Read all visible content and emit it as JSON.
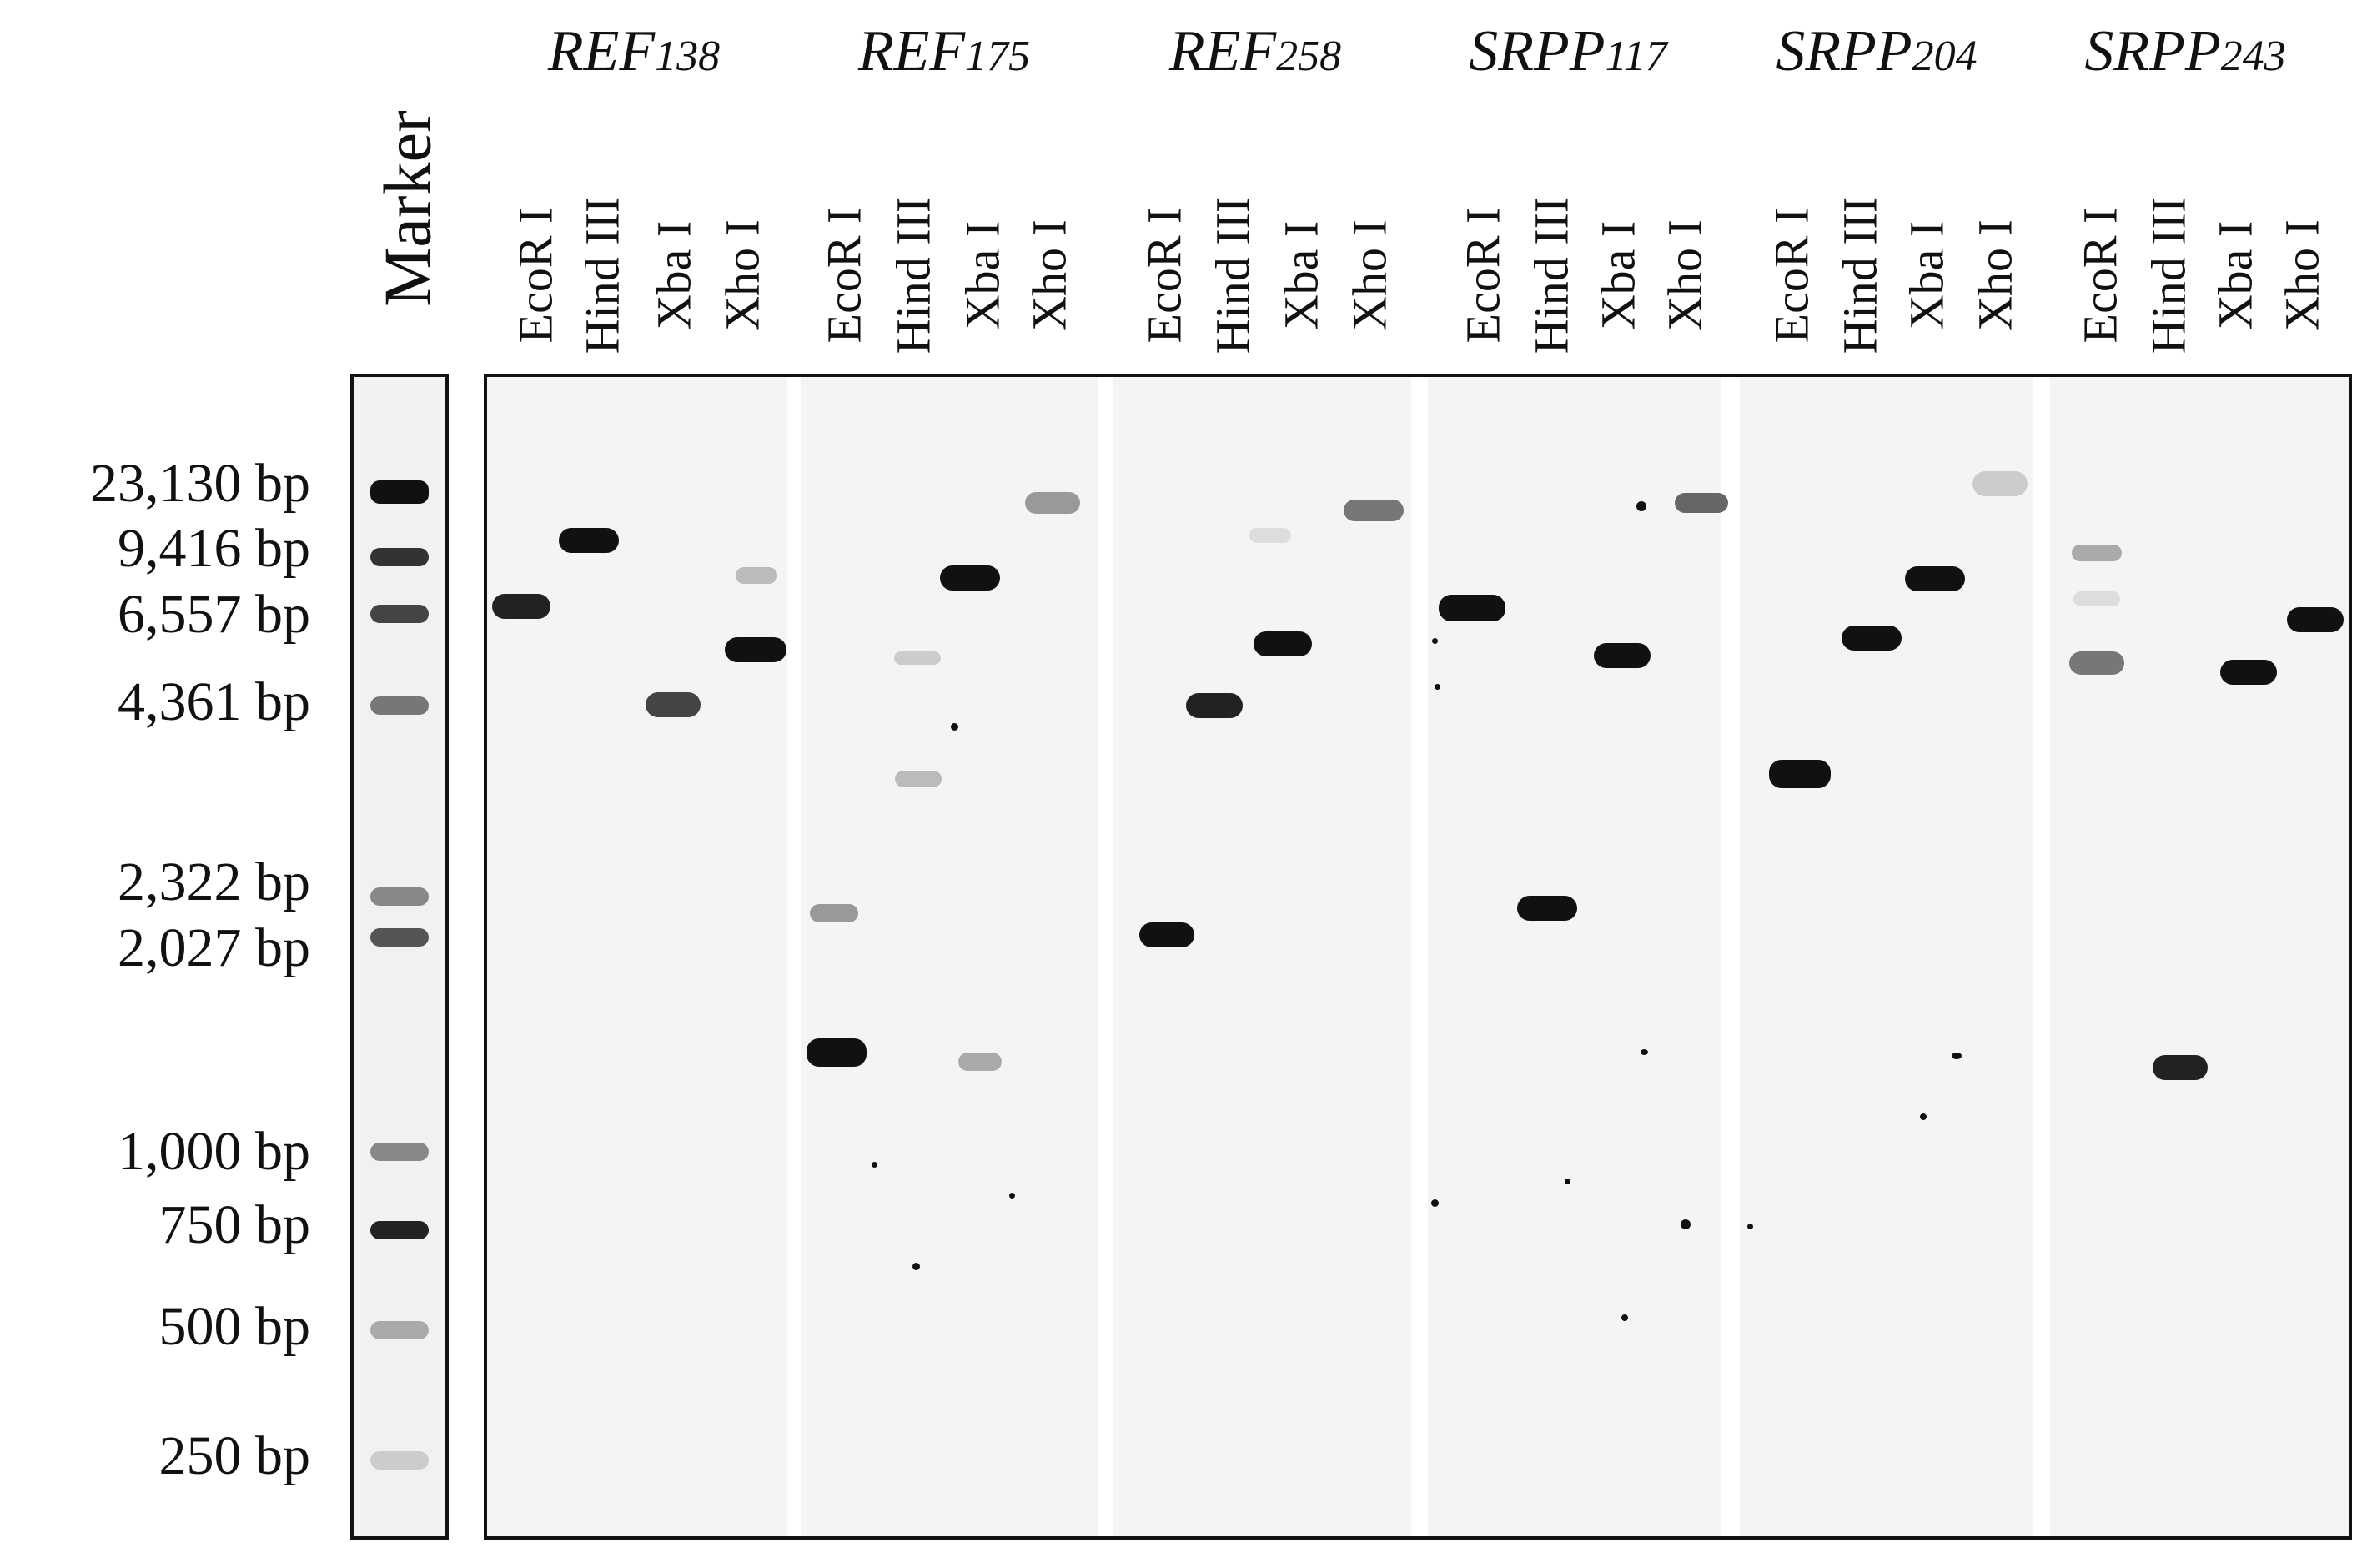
{
  "marker": {
    "label": "Marker",
    "sizes": [
      "23,130 bp",
      "9,416 bp",
      "6,557 bp",
      "4,361 bp",
      "2,322 bp",
      "2,027 bp",
      "1,000 bp",
      "750 bp",
      "500 bp",
      "250 bp"
    ]
  },
  "genes": [
    {
      "name": "REF",
      "number": "138"
    },
    {
      "name": "REF",
      "number": "175"
    },
    {
      "name": "REF",
      "number": "258"
    },
    {
      "name": "SRPP",
      "number": "117"
    },
    {
      "name": "SRPP",
      "number": "204"
    },
    {
      "name": "SRPP",
      "number": "243"
    }
  ],
  "enzymes": [
    "EcoR I",
    "Hind III",
    "Xba I",
    "Xho I"
  ],
  "colors": {
    "band": "#111111",
    "background": "#f4f4f4",
    "frame": "#111111"
  }
}
